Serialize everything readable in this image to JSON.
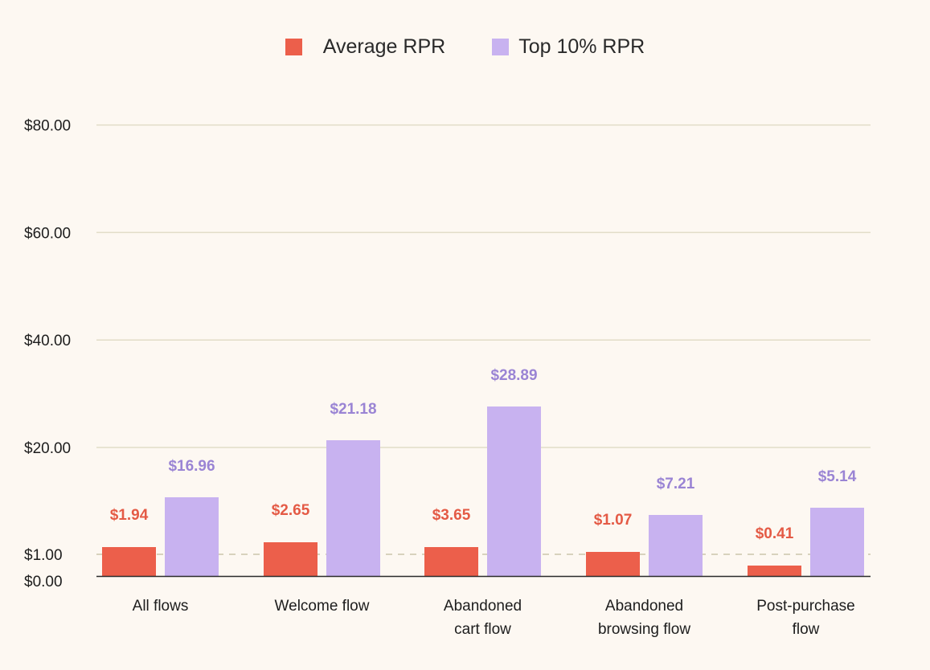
{
  "legend": {
    "avg_label": "Average RPR",
    "top_label": "Top 10% RPR"
  },
  "colors": {
    "avg": "#ec5f4b",
    "top": "#c8b2f0",
    "avg_text": "#e45a45",
    "top_text": "#9a84d4",
    "grid": "#e2ddc8",
    "dashed": "#d8d2bd",
    "axis": "#2b2b2b"
  },
  "chart_data": {
    "type": "bar",
    "categories": [
      [
        "All flows"
      ],
      [
        "Welcome flow"
      ],
      [
        "Abandoned",
        "cart flow"
      ],
      [
        "Abandoned",
        "browsing flow"
      ],
      [
        "Post-purchase",
        "flow"
      ]
    ],
    "series": [
      {
        "name": "Average RPR",
        "values": [
          1.94,
          2.65,
          3.65,
          1.07,
          0.41
        ],
        "labels": [
          "$1.94",
          "$2.65",
          "$3.65",
          "$1.07",
          "$0.41"
        ]
      },
      {
        "name": "Top 10% RPR",
        "values": [
          16.96,
          21.18,
          28.89,
          7.21,
          5.14
        ],
        "labels": [
          "$16.96",
          "$21.18",
          "$28.89",
          "$7.21",
          "$5.14"
        ]
      }
    ],
    "yticks": [
      {
        "value": 0,
        "label": "$0.00"
      },
      {
        "value": 1,
        "label": "$1.00"
      },
      {
        "value": 20,
        "label": "$20.00"
      },
      {
        "value": 40,
        "label": "$40.00"
      },
      {
        "value": 60,
        "label": "$60.00"
      },
      {
        "value": 80,
        "label": "$80.00"
      }
    ],
    "ylim": [
      0,
      80
    ],
    "grid": true,
    "reference_line": {
      "value": 1,
      "style": "dashed"
    },
    "legend_position": "top-center",
    "y_scale_note": "y-axis is broken/non-linear between $0.00 and $20.00"
  }
}
